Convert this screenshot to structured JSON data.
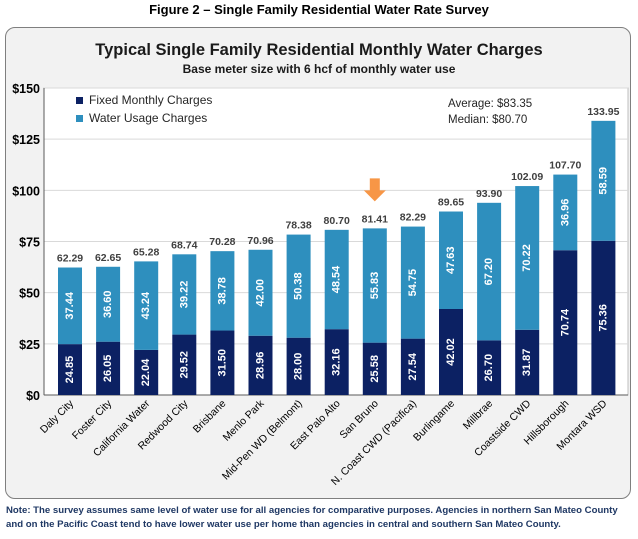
{
  "figure_title": "Figure 2 – Single Family Residential Water Rate Survey",
  "note": "Note: The survey assumes same level of water use for all agencies for comparative purposes.  Agencies in northern San Mateo County and on the Pacific Coast tend to have lower water use per home than agencies in central and southern San Mateo County.",
  "chart_data": {
    "type": "bar",
    "stacked": true,
    "title": "Typical Single Family Residential Monthly Water Charges",
    "subtitle": "Base meter size with 6 hcf of monthly water use",
    "ylim": [
      0,
      150
    ],
    "yticks": [
      0,
      25,
      50,
      75,
      100,
      125,
      150
    ],
    "ytick_labels": [
      "$0",
      "$25",
      "$50",
      "$75",
      "$100",
      "$125",
      "$150"
    ],
    "grid": true,
    "legend": "top-left",
    "annotations": [
      "Average: $83.35",
      "Median: $80.70"
    ],
    "highlight": {
      "category": "San Bruno",
      "marker": "down-arrow",
      "color": "#f79646"
    },
    "categories": [
      "Daly City",
      "Foster City",
      "California Water",
      "Redwood City",
      "Brisbane",
      "Menlo Park",
      "Mid-Pen WD (Belmont)",
      "East Palo Alto",
      "San Bruno",
      "N. Coast CWD (Pacifica)",
      "Burlingame",
      "Millbrae",
      "Coastside CWD",
      "Hillsborough",
      "Montara WSD"
    ],
    "series": [
      {
        "name": "Fixed Monthly Charges",
        "color": "#0c2163",
        "values": [
          24.85,
          26.05,
          22.04,
          29.52,
          31.5,
          28.96,
          28.0,
          32.16,
          25.58,
          27.54,
          42.02,
          26.7,
          31.87,
          70.74,
          75.36
        ]
      },
      {
        "name": "Water Usage Charges",
        "color": "#2e8fbe",
        "values": [
          37.44,
          36.6,
          43.24,
          39.22,
          38.78,
          42.0,
          50.38,
          48.54,
          55.83,
          54.75,
          47.63,
          67.2,
          70.22,
          36.96,
          58.59
        ]
      }
    ],
    "totals": [
      62.29,
      62.65,
      65.28,
      68.74,
      70.28,
      70.96,
      78.38,
      80.7,
      81.41,
      82.29,
      89.65,
      93.9,
      102.09,
      107.7,
      133.95
    ]
  }
}
